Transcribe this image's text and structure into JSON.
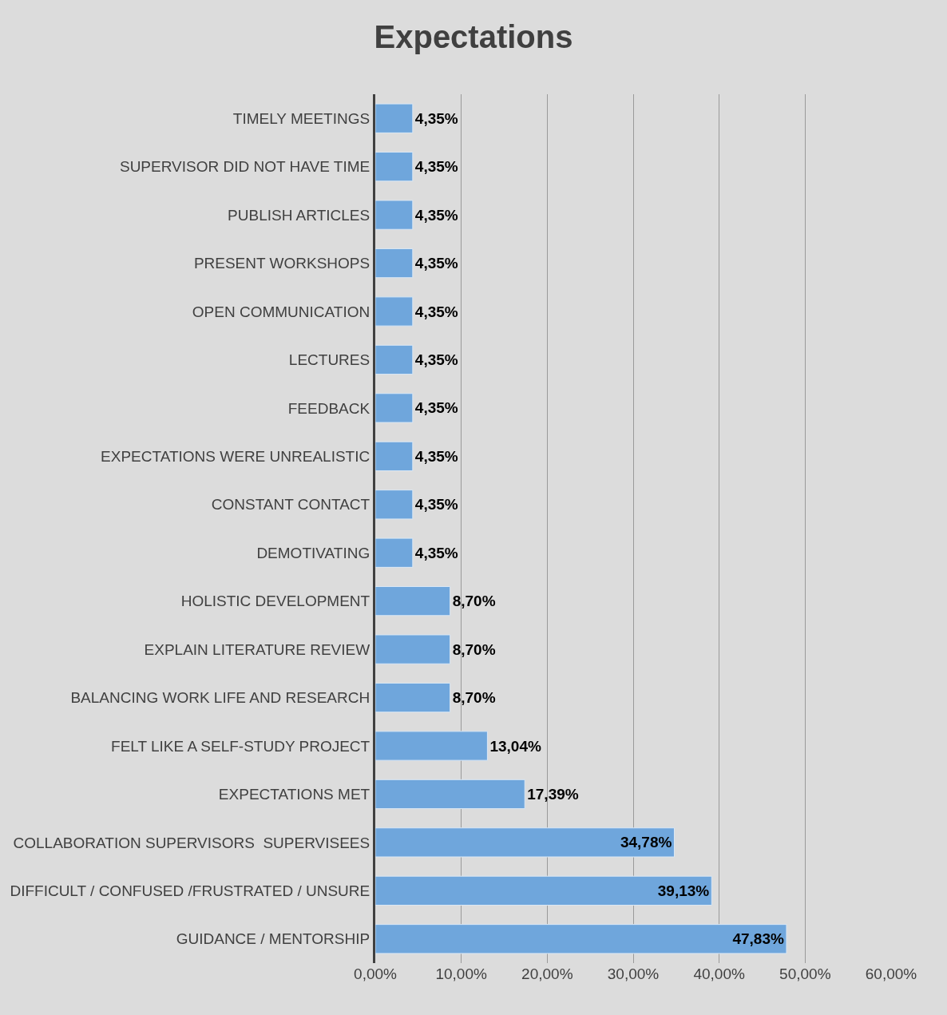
{
  "chart_data": {
    "type": "bar",
    "orientation": "horizontal",
    "title": "Expectations",
    "categories": [
      "TIMELY MEETINGS",
      "SUPERVISOR DID NOT HAVE TIME",
      "PUBLISH ARTICLES",
      "PRESENT WORKSHOPS",
      "OPEN COMMUNICATION",
      "LECTURES",
      "FEEDBACK",
      "EXPECTATIONS WERE UNREALISTIC",
      "CONSTANT CONTACT",
      "DEMOTIVATING",
      "HOLISTIC DEVELOPMENT",
      "EXPLAIN LITERATURE REVIEW",
      "BALANCING WORK LIFE AND RESEARCH",
      "FELT LIKE A SELF-STUDY PROJECT",
      "EXPECTATIONS MET",
      "COLLABORATION SUPERVISORS  SUPERVISEES",
      "DIFFICULT / CONFUSED /FRUSTRATED / UNSURE",
      "GUIDANCE / MENTORSHIP"
    ],
    "values": [
      4.35,
      4.35,
      4.35,
      4.35,
      4.35,
      4.35,
      4.35,
      4.35,
      4.35,
      4.35,
      8.7,
      8.7,
      8.7,
      13.04,
      17.39,
      34.78,
      39.13,
      47.83
    ],
    "value_labels": [
      "4,35%",
      "4,35%",
      "4,35%",
      "4,35%",
      "4,35%",
      "4,35%",
      "4,35%",
      "4,35%",
      "4,35%",
      "4,35%",
      "8,70%",
      "8,70%",
      "8,70%",
      "13,04%",
      "17,39%",
      "34,78%",
      "39,13%",
      "47,83%"
    ],
    "color": "#6fa6dc",
    "xlim": [
      0,
      60
    ],
    "xticks": [
      {
        "value": 0,
        "label": "0,00%"
      },
      {
        "value": 10,
        "label": "10,00%"
      },
      {
        "value": 20,
        "label": "20,00%"
      },
      {
        "value": 30,
        "label": "30,00%"
      },
      {
        "value": 40,
        "label": "40,00%"
      },
      {
        "value": 50,
        "label": "50,00%"
      },
      {
        "value": 60,
        "label": "60,00%"
      }
    ],
    "grid": "x",
    "legend": false
  }
}
